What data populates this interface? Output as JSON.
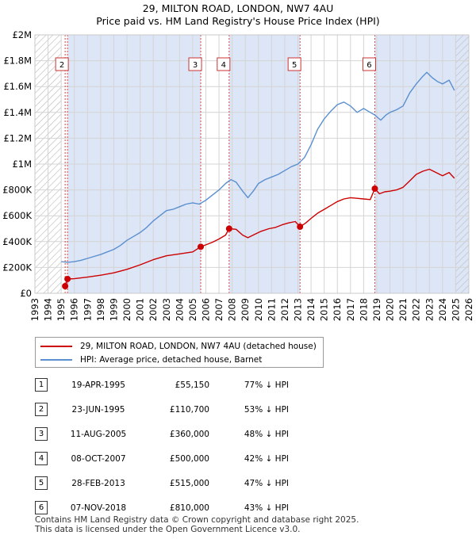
{
  "title_line1": "29, MILTON ROAD, LONDON, NW7 4AU",
  "title_line2": "Price paid vs. HM Land Registry's House Price Index (HPI)",
  "colors": {
    "property": "#cc0000",
    "hpi": "#5a8fd0",
    "shade": "#dde6f7",
    "hatch": "#b0b0b0"
  },
  "chart_data": {
    "type": "line",
    "xlim": [
      1993.0,
      2026.0
    ],
    "ylim": [
      0,
      2000000
    ],
    "y_ticks": [
      {
        "value": 0,
        "label": "£0"
      },
      {
        "value": 200000,
        "label": "£200K"
      },
      {
        "value": 400000,
        "label": "£400K"
      },
      {
        "value": 600000,
        "label": "£600K"
      },
      {
        "value": 800000,
        "label": "£800K"
      },
      {
        "value": 1000000,
        "label": "£1M"
      },
      {
        "value": 1200000,
        "label": "£1.2M"
      },
      {
        "value": 1400000,
        "label": "£1.4M"
      },
      {
        "value": 1600000,
        "label": "£1.6M"
      },
      {
        "value": 1800000,
        "label": "£1.8M"
      },
      {
        "value": 2000000,
        "label": "£2M"
      }
    ],
    "x_ticks": [
      "1993",
      "1994",
      "1995",
      "1996",
      "1997",
      "1998",
      "1999",
      "2000",
      "2001",
      "2002",
      "2003",
      "2004",
      "2005",
      "2006",
      "2007",
      "2008",
      "2009",
      "2010",
      "2011",
      "2012",
      "2013",
      "2014",
      "2015",
      "2016",
      "2017",
      "2018",
      "2019",
      "2020",
      "2021",
      "2022",
      "2023",
      "2024",
      "2025",
      "2026"
    ],
    "grid": true,
    "hatched_regions": [
      [
        1993.0,
        1995.0
      ],
      [
        2025.0,
        2026.0
      ]
    ],
    "shaded_regions": [
      [
        1995.48,
        2005.61
      ],
      [
        2007.77,
        2013.16
      ],
      [
        2018.85,
        2026.0
      ]
    ],
    "series": [
      {
        "name": "29, MILTON ROAD, LONDON, NW7 4AU (detached house)",
        "color": "#cc0000",
        "points": [
          [
            1995.3,
            55150
          ],
          [
            1995.48,
            110700
          ],
          [
            1996.0,
            113000
          ],
          [
            1997.0,
            125000
          ],
          [
            1998.0,
            140000
          ],
          [
            1999.0,
            158000
          ],
          [
            2000.0,
            185000
          ],
          [
            2001.0,
            220000
          ],
          [
            2002.0,
            260000
          ],
          [
            2003.0,
            290000
          ],
          [
            2004.0,
            305000
          ],
          [
            2005.0,
            320000
          ],
          [
            2005.61,
            360000
          ],
          [
            2006.0,
            375000
          ],
          [
            2006.5,
            395000
          ],
          [
            2007.0,
            420000
          ],
          [
            2007.5,
            450000
          ],
          [
            2007.77,
            500000
          ],
          [
            2008.3,
            495000
          ],
          [
            2008.8,
            450000
          ],
          [
            2009.2,
            430000
          ],
          [
            2009.7,
            455000
          ],
          [
            2010.2,
            480000
          ],
          [
            2010.8,
            500000
          ],
          [
            2011.3,
            510000
          ],
          [
            2011.8,
            530000
          ],
          [
            2012.3,
            545000
          ],
          [
            2012.8,
            555000
          ],
          [
            2013.16,
            515000
          ],
          [
            2013.6,
            545000
          ],
          [
            2014.0,
            580000
          ],
          [
            2014.5,
            620000
          ],
          [
            2015.0,
            650000
          ],
          [
            2015.5,
            680000
          ],
          [
            2016.0,
            710000
          ],
          [
            2016.5,
            730000
          ],
          [
            2017.0,
            740000
          ],
          [
            2017.5,
            735000
          ],
          [
            2018.0,
            730000
          ],
          [
            2018.5,
            725000
          ],
          [
            2018.85,
            810000
          ],
          [
            2019.2,
            770000
          ],
          [
            2019.6,
            785000
          ],
          [
            2020.0,
            790000
          ],
          [
            2020.5,
            800000
          ],
          [
            2021.0,
            820000
          ],
          [
            2021.5,
            870000
          ],
          [
            2022.0,
            920000
          ],
          [
            2022.5,
            945000
          ],
          [
            2023.0,
            960000
          ],
          [
            2023.5,
            935000
          ],
          [
            2024.0,
            910000
          ],
          [
            2024.5,
            935000
          ],
          [
            2024.9,
            890000
          ]
        ]
      },
      {
        "name": "HPI: Average price, detached house, Barnet",
        "color": "#5a8fd0",
        "points": [
          [
            1995.0,
            245000
          ],
          [
            1995.5,
            240000
          ],
          [
            1996.0,
            245000
          ],
          [
            1996.5,
            255000
          ],
          [
            1997.0,
            270000
          ],
          [
            1997.5,
            285000
          ],
          [
            1998.0,
            300000
          ],
          [
            1998.5,
            320000
          ],
          [
            1999.0,
            340000
          ],
          [
            1999.5,
            370000
          ],
          [
            2000.0,
            410000
          ],
          [
            2000.5,
            440000
          ],
          [
            2001.0,
            470000
          ],
          [
            2001.5,
            510000
          ],
          [
            2002.0,
            560000
          ],
          [
            2002.5,
            600000
          ],
          [
            2003.0,
            640000
          ],
          [
            2003.5,
            650000
          ],
          [
            2004.0,
            670000
          ],
          [
            2004.5,
            690000
          ],
          [
            2005.0,
            700000
          ],
          [
            2005.5,
            690000
          ],
          [
            2006.0,
            720000
          ],
          [
            2006.5,
            760000
          ],
          [
            2007.0,
            800000
          ],
          [
            2007.5,
            850000
          ],
          [
            2007.9,
            880000
          ],
          [
            2008.3,
            860000
          ],
          [
            2008.8,
            790000
          ],
          [
            2009.2,
            740000
          ],
          [
            2009.6,
            790000
          ],
          [
            2010.0,
            850000
          ],
          [
            2010.5,
            880000
          ],
          [
            2011.0,
            900000
          ],
          [
            2011.5,
            920000
          ],
          [
            2012.0,
            950000
          ],
          [
            2012.5,
            980000
          ],
          [
            2013.0,
            1000000
          ],
          [
            2013.5,
            1050000
          ],
          [
            2014.0,
            1150000
          ],
          [
            2014.5,
            1270000
          ],
          [
            2015.0,
            1350000
          ],
          [
            2015.5,
            1410000
          ],
          [
            2016.0,
            1460000
          ],
          [
            2016.5,
            1480000
          ],
          [
            2017.0,
            1450000
          ],
          [
            2017.5,
            1400000
          ],
          [
            2018.0,
            1430000
          ],
          [
            2018.5,
            1400000
          ],
          [
            2018.85,
            1380000
          ],
          [
            2019.3,
            1340000
          ],
          [
            2019.7,
            1380000
          ],
          [
            2020.0,
            1400000
          ],
          [
            2020.5,
            1420000
          ],
          [
            2021.0,
            1450000
          ],
          [
            2021.5,
            1550000
          ],
          [
            2022.0,
            1620000
          ],
          [
            2022.5,
            1680000
          ],
          [
            2022.8,
            1710000
          ],
          [
            2023.2,
            1670000
          ],
          [
            2023.6,
            1640000
          ],
          [
            2024.0,
            1620000
          ],
          [
            2024.5,
            1650000
          ],
          [
            2024.9,
            1570000
          ]
        ]
      }
    ],
    "markers": [
      {
        "label": "1",
        "x": 1995.3,
        "y": 55150
      },
      {
        "label": "2",
        "x": 1995.48,
        "y": 110700
      },
      {
        "label": "3",
        "x": 2005.61,
        "y": 360000
      },
      {
        "label": "4",
        "x": 2007.77,
        "y": 500000
      },
      {
        "label": "5",
        "x": 2013.16,
        "y": 515000
      },
      {
        "label": "6",
        "x": 2018.85,
        "y": 810000
      }
    ],
    "marker_boxes": [
      {
        "label": "2",
        "x": 1995.48
      },
      {
        "label": "3",
        "x": 2005.61
      },
      {
        "label": "4",
        "x": 2007.77
      },
      {
        "label": "5",
        "x": 2013.16
      },
      {
        "label": "6",
        "x": 2018.85
      }
    ]
  },
  "legend": {
    "property_label": "29, MILTON ROAD, LONDON, NW7 4AU (detached house)",
    "hpi_label": "HPI: Average price, detached house, Barnet"
  },
  "sales": [
    {
      "num": "1",
      "date": "19-APR-1995",
      "price": "£55,150",
      "hpi": "77% ↓ HPI"
    },
    {
      "num": "2",
      "date": "23-JUN-1995",
      "price": "£110,700",
      "hpi": "53% ↓ HPI"
    },
    {
      "num": "3",
      "date": "11-AUG-2005",
      "price": "£360,000",
      "hpi": "48% ↓ HPI"
    },
    {
      "num": "4",
      "date": "08-OCT-2007",
      "price": "£500,000",
      "hpi": "42% ↓ HPI"
    },
    {
      "num": "5",
      "date": "28-FEB-2013",
      "price": "£515,000",
      "hpi": "47% ↓ HPI"
    },
    {
      "num": "6",
      "date": "07-NOV-2018",
      "price": "£810,000",
      "hpi": "43% ↓ HPI"
    }
  ],
  "footer_line1": "Contains HM Land Registry data © Crown copyright and database right 2025.",
  "footer_line2": "This data is licensed under the Open Government Licence v3.0."
}
